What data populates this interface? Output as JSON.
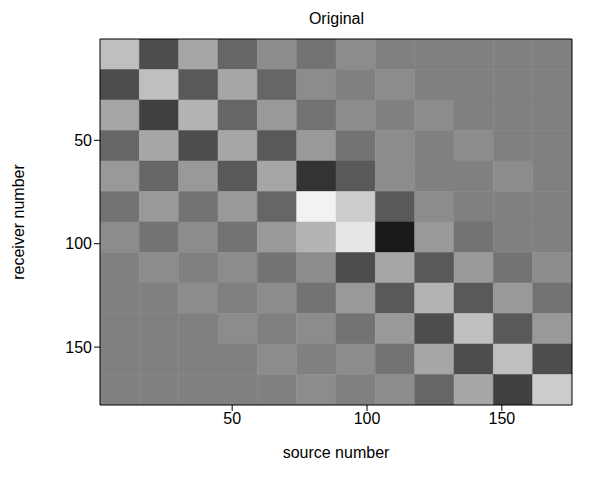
{
  "chart_data": {
    "type": "heatmap",
    "title": "Original",
    "x_label": "source number",
    "y_label": "receiver number",
    "xlim": [
      1,
      176
    ],
    "xticks": [
      50,
      100,
      150
    ],
    "ylim": [
      1,
      178
    ],
    "yticks": [
      50,
      100,
      150
    ],
    "color": "gray",
    "color_range": [
      -1,
      1
    ],
    "cells": [
      [
        0.5,
        -0.4,
        0.3,
        -0.2,
        0.1,
        -0.1,
        0.1,
        0,
        0,
        0,
        0,
        0
      ],
      [
        -0.4,
        0.5,
        -0.3,
        0.3,
        -0.2,
        0.1,
        0,
        0.1,
        0,
        0,
        0,
        0
      ],
      [
        0.3,
        -0.5,
        0.4,
        -0.2,
        0.2,
        -0.1,
        0.1,
        0,
        0.1,
        0,
        0,
        0
      ],
      [
        -0.2,
        0.3,
        -0.4,
        0.3,
        -0.3,
        0.2,
        -0.1,
        0.1,
        0,
        0.1,
        0,
        0
      ],
      [
        0.2,
        -0.2,
        0.2,
        -0.3,
        0.3,
        -0.6,
        -0.3,
        0.1,
        0,
        0,
        0.1,
        0
      ],
      [
        -0.1,
        0.2,
        -0.1,
        0.2,
        -0.2,
        0.9,
        0.6,
        -0.3,
        0.1,
        0,
        0,
        0
      ],
      [
        0.1,
        -0.1,
        0.1,
        -0.1,
        0.2,
        0.4,
        0.8,
        -0.8,
        0.2,
        -0.1,
        0,
        0
      ],
      [
        0,
        0.1,
        0,
        0.1,
        -0.1,
        0.1,
        -0.4,
        0.3,
        -0.3,
        0.2,
        -0.1,
        0.1
      ],
      [
        0,
        0,
        0.1,
        0,
        0.1,
        -0.1,
        0.2,
        -0.3,
        0.4,
        -0.3,
        0.2,
        -0.1
      ],
      [
        0,
        0,
        0,
        0.1,
        0,
        0.1,
        -0.1,
        0.2,
        -0.4,
        0.5,
        -0.3,
        0.2
      ],
      [
        0,
        0,
        0,
        0,
        0.1,
        0,
        0.1,
        -0.1,
        0.3,
        -0.4,
        0.5,
        -0.4
      ],
      [
        0,
        0,
        0,
        0,
        0,
        0.1,
        0,
        0.1,
        -0.2,
        0.3,
        -0.5,
        0.6
      ]
    ]
  }
}
